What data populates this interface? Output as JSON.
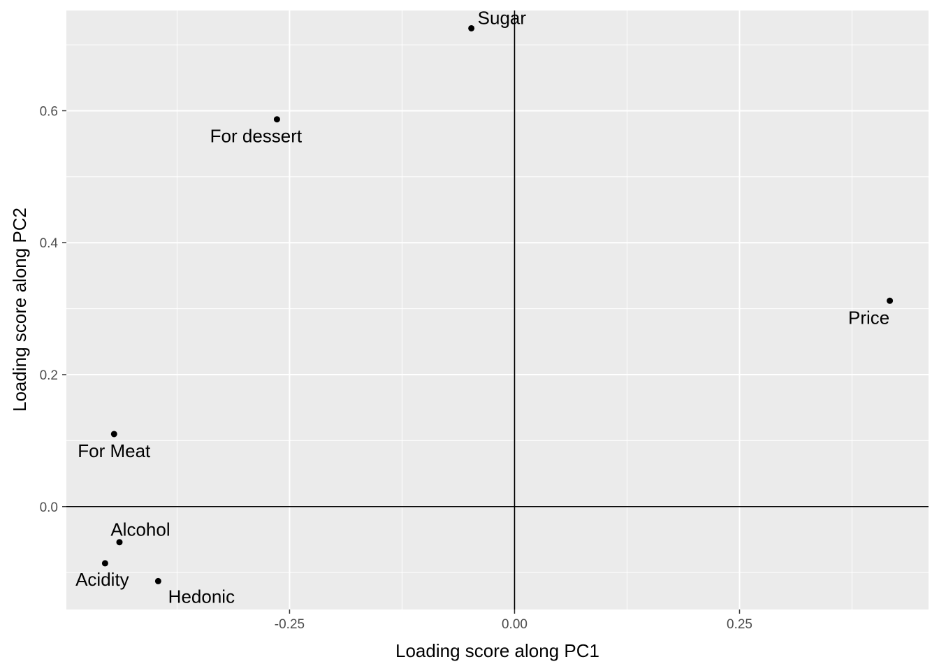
{
  "chart_data": {
    "type": "scatter",
    "title": "",
    "xlabel": "Loading score along PC1",
    "ylabel": "Loading score along PC2",
    "xlim": [
      -0.498,
      0.46
    ],
    "ylim": [
      -0.156,
      0.752
    ],
    "x_ticks": [
      -0.25,
      0.0,
      0.25
    ],
    "x_tick_labels": [
      "-0.25",
      "0.00",
      "0.25"
    ],
    "y_ticks": [
      0.0,
      0.2,
      0.4,
      0.6
    ],
    "y_tick_labels": [
      "0.0",
      "0.2",
      "0.4",
      "0.6"
    ],
    "grid": true,
    "reference_lines": {
      "x": 0,
      "y": 0
    },
    "points": [
      {
        "label": "Sugar",
        "x": -0.048,
        "y": 0.725,
        "label_pos": "right"
      },
      {
        "label": "For dessert",
        "x": -0.264,
        "y": 0.587,
        "label_pos": "below"
      },
      {
        "label": "Price",
        "x": 0.417,
        "y": 0.312,
        "label_pos": "below-left"
      },
      {
        "label": "For Meat",
        "x": -0.445,
        "y": 0.11,
        "label_pos": "below"
      },
      {
        "label": "Alcohol",
        "x": -0.439,
        "y": -0.054,
        "label_pos": "above"
      },
      {
        "label": "Acidity",
        "x": -0.455,
        "y": -0.086,
        "label_pos": "below"
      },
      {
        "label": "Hedonic",
        "x": -0.396,
        "y": -0.113,
        "label_pos": "below-right"
      }
    ],
    "colors": {
      "panel": "#ebebeb",
      "grid": "#ffffff",
      "point": "#000000",
      "refline": "#000000"
    }
  }
}
